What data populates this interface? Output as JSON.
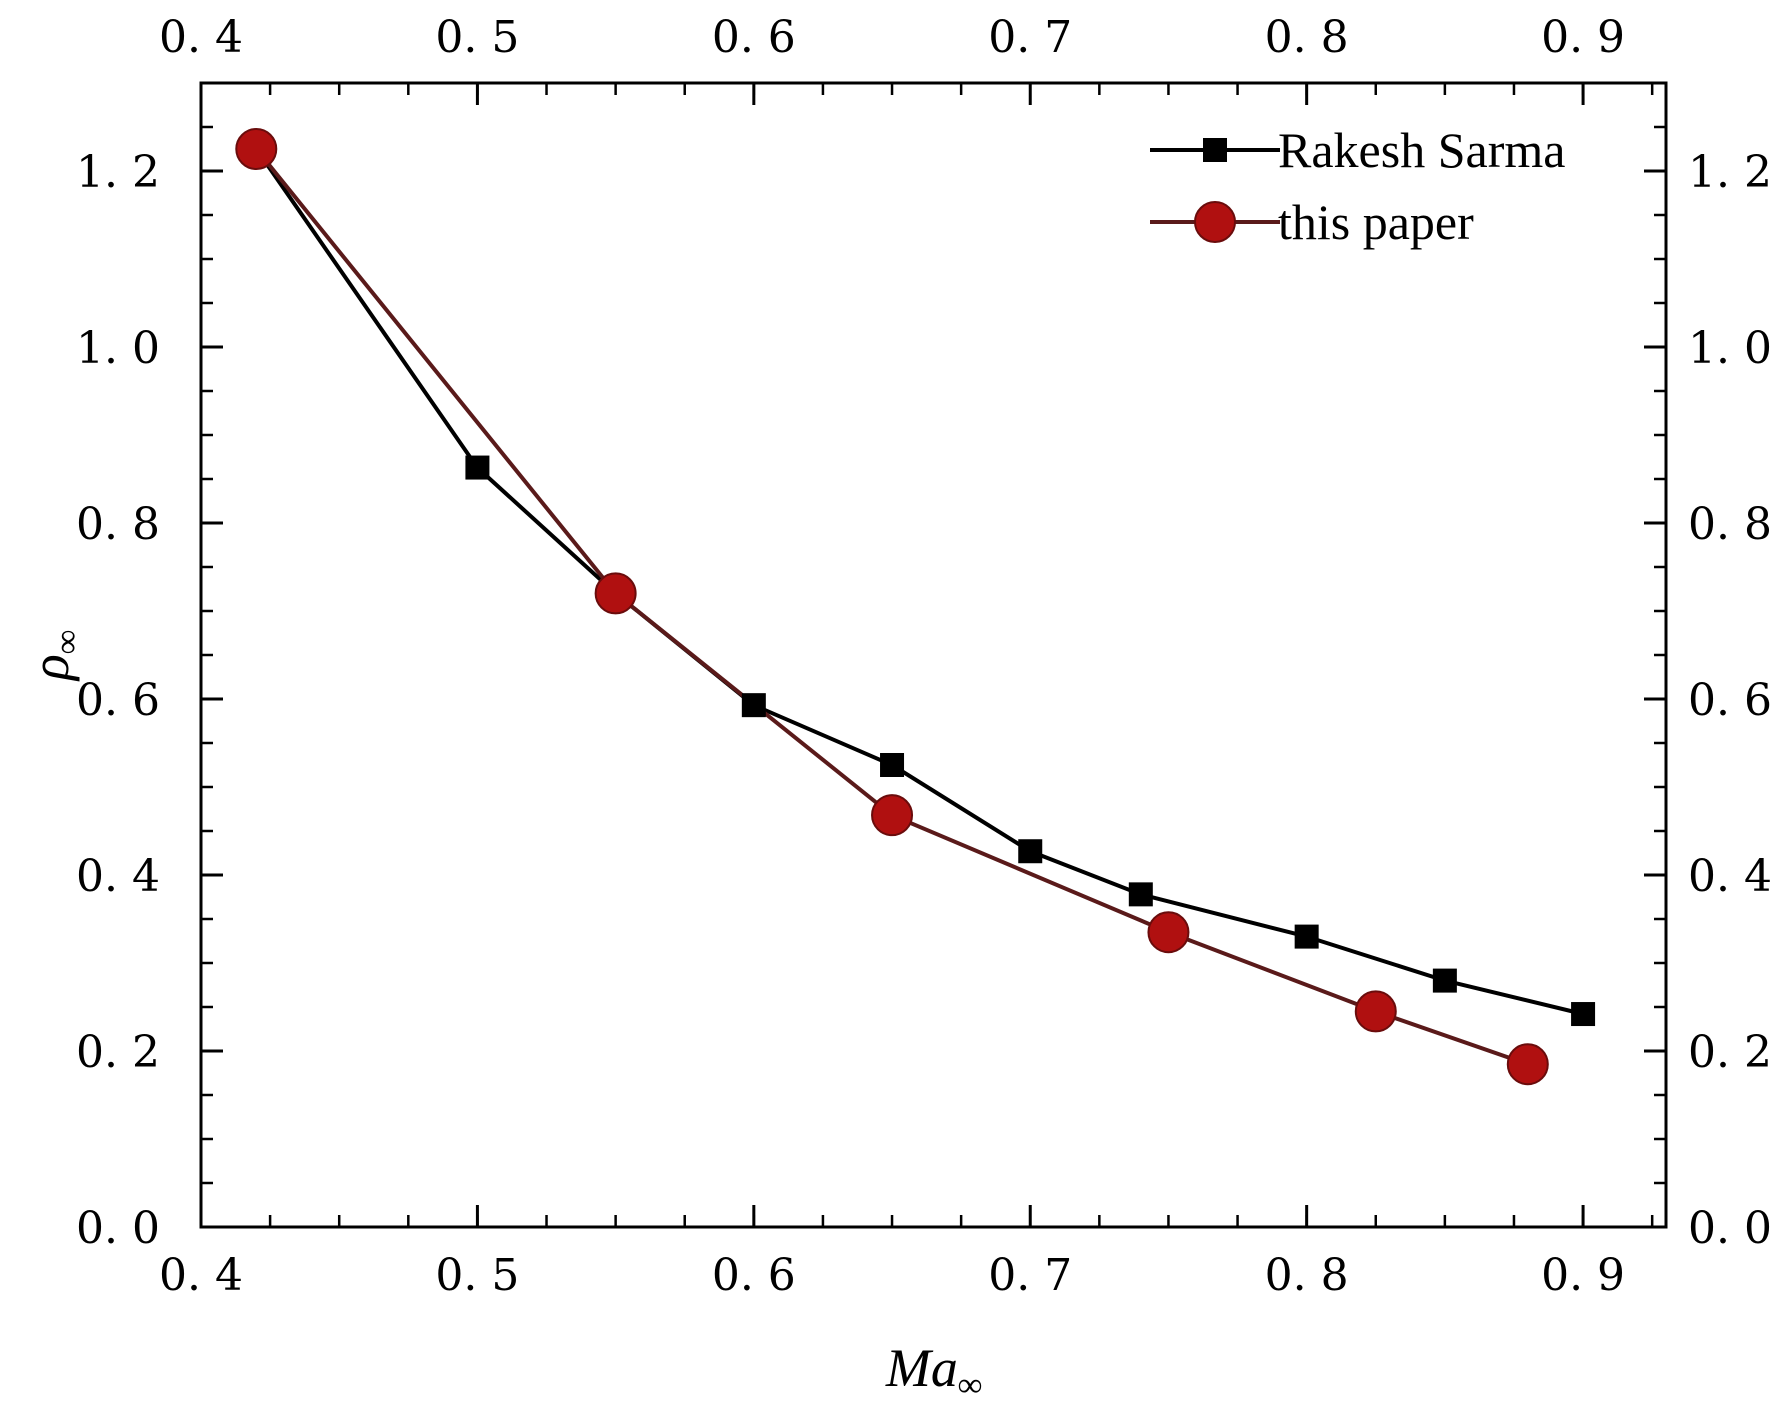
{
  "chart_data": {
    "type": "line",
    "title": "",
    "xlabel_base": "Ma",
    "xlabel_sub": "∞",
    "ylabel_base": "ρ",
    "ylabel_sub": "∞",
    "xlim": [
      0.4,
      0.93
    ],
    "ylim": [
      0.0,
      1.3
    ],
    "x_ticks": [
      {
        "value": 0.4,
        "label": "0. 4"
      },
      {
        "value": 0.5,
        "label": "0. 5"
      },
      {
        "value": 0.6,
        "label": "0. 6"
      },
      {
        "value": 0.7,
        "label": "0. 7"
      },
      {
        "value": 0.8,
        "label": "0. 8"
      },
      {
        "value": 0.9,
        "label": "0. 9"
      }
    ],
    "y_ticks": [
      {
        "value": 0.0,
        "label": "0. 0"
      },
      {
        "value": 0.2,
        "label": "0. 2"
      },
      {
        "value": 0.4,
        "label": "0. 4"
      },
      {
        "value": 0.6,
        "label": "0. 6"
      },
      {
        "value": 0.8,
        "label": "0. 8"
      },
      {
        "value": 1.0,
        "label": "1. 0"
      },
      {
        "value": 1.2,
        "label": "1. 2"
      }
    ],
    "x_minor_step": 0.025,
    "y_minor_step": 0.05,
    "grid": false,
    "legend_position": "top-right",
    "series": [
      {
        "name": "Rakesh Sarma",
        "marker": "square",
        "color": "#000000",
        "marker_color": "#000000",
        "x": [
          0.42,
          0.5,
          0.55,
          0.6,
          0.65,
          0.7,
          0.74,
          0.8,
          0.85,
          0.9
        ],
        "y": [
          1.225,
          0.863,
          0.72,
          0.593,
          0.525,
          0.427,
          0.378,
          0.33,
          0.28,
          0.242
        ]
      },
      {
        "name": "this paper",
        "marker": "circle",
        "color": "#5a1a1a",
        "marker_color": "#b01010",
        "x": [
          0.42,
          0.55,
          0.65,
          0.75,
          0.825,
          0.88
        ],
        "y": [
          1.225,
          0.72,
          0.468,
          0.335,
          0.245,
          0.185
        ]
      }
    ]
  }
}
